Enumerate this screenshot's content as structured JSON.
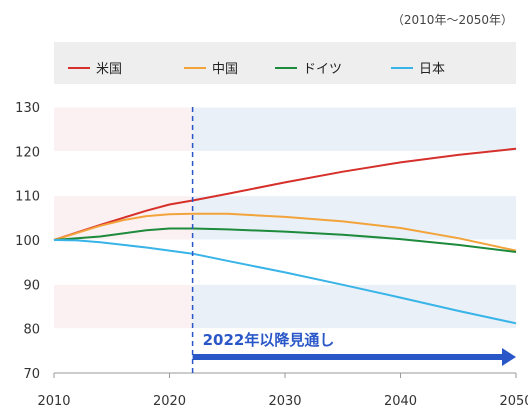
{
  "chart_data": {
    "type": "line",
    "period_note": "（2010年〜2050年）",
    "legend_position": "top",
    "x_ticks": [
      2010,
      2020,
      2030,
      2040,
      2050
    ],
    "xlim": [
      2010,
      2050
    ],
    "y_ticks": [
      70,
      80,
      90,
      100,
      110,
      120,
      130
    ],
    "ylim": [
      70,
      130
    ],
    "series": [
      {
        "name": "米国",
        "color": "#d6302b",
        "points": [
          [
            2010,
            100
          ],
          [
            2012,
            101.7
          ],
          [
            2014,
            103.4
          ],
          [
            2016,
            105
          ],
          [
            2018,
            106.6
          ],
          [
            2020,
            108
          ],
          [
            2022,
            108.9
          ],
          [
            2025,
            110.4
          ],
          [
            2030,
            113
          ],
          [
            2035,
            115.4
          ],
          [
            2040,
            117.5
          ],
          [
            2045,
            119.2
          ],
          [
            2050,
            120.6
          ]
        ]
      },
      {
        "name": "中国",
        "color": "#f2a33a",
        "points": [
          [
            2010,
            100
          ],
          [
            2012,
            101.6
          ],
          [
            2014,
            103.2
          ],
          [
            2016,
            104.5
          ],
          [
            2018,
            105.4
          ],
          [
            2020,
            105.8
          ],
          [
            2022,
            105.9
          ],
          [
            2025,
            105.9
          ],
          [
            2030,
            105.2
          ],
          [
            2035,
            104.2
          ],
          [
            2040,
            102.7
          ],
          [
            2045,
            100.4
          ],
          [
            2050,
            97.6
          ]
        ]
      },
      {
        "name": "ドイツ",
        "color": "#1d8a3c",
        "points": [
          [
            2010,
            100
          ],
          [
            2014,
            100.8
          ],
          [
            2018,
            102.2
          ],
          [
            2020,
            102.6
          ],
          [
            2022,
            102.6
          ],
          [
            2025,
            102.4
          ],
          [
            2030,
            101.9
          ],
          [
            2035,
            101.2
          ],
          [
            2040,
            100.2
          ],
          [
            2045,
            98.9
          ],
          [
            2050,
            97.3
          ]
        ]
      },
      {
        "name": "日本",
        "color": "#38b4e8",
        "points": [
          [
            2010,
            100
          ],
          [
            2012,
            99.9
          ],
          [
            2014,
            99.5
          ],
          [
            2016,
            98.9
          ],
          [
            2018,
            98.3
          ],
          [
            2020,
            97.6
          ],
          [
            2022,
            96.9
          ],
          [
            2025,
            95.3
          ],
          [
            2030,
            92.7
          ],
          [
            2035,
            89.9
          ],
          [
            2040,
            87
          ],
          [
            2045,
            84
          ],
          [
            2050,
            81.2
          ]
        ]
      }
    ],
    "bands": [
      {
        "x0": 2010,
        "x1": 2022,
        "y0": 80,
        "y1": 90,
        "color": "#fbf0f2"
      },
      {
        "x0": 2010,
        "x1": 2022,
        "y0": 100,
        "y1": 110,
        "color": "#fbf0f2"
      },
      {
        "x0": 2010,
        "x1": 2022,
        "y0": 120,
        "y1": 130,
        "color": "#fbf0f2"
      },
      {
        "x0": 2022,
        "x1": 2050,
        "y0": 80,
        "y1": 90,
        "color": "#eaf0f8"
      },
      {
        "x0": 2022,
        "x1": 2050,
        "y0": 100,
        "y1": 110,
        "color": "#eaf0f8"
      },
      {
        "x0": 2022,
        "x1": 2050,
        "y0": 120,
        "y1": 130,
        "color": "#eaf0f8"
      }
    ],
    "forecast": {
      "start_x": 2022,
      "label": "2022年以降見通し",
      "color": "#2a57c8"
    },
    "grid": true
  }
}
